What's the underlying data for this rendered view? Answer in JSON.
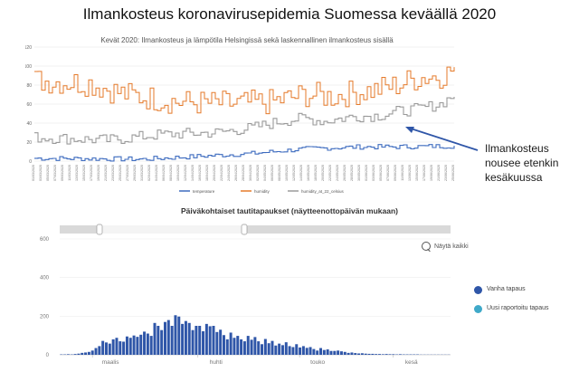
{
  "slide": {
    "title": "Ilmankosteus koronavirusepidemia Suomessa keväällä 2020",
    "annotation": "Ilmankosteus nousee etenkin kesäkuussa",
    "bottom_title": "Päiväkohtaiset tautitapaukset (näytteenottopäivän mukaan)",
    "zoom_label": "Näytä kaikki",
    "colors": {
      "temperature": "#3d6bbf",
      "humidity": "#e57a2a",
      "humidity_abs": "#9a9a9a",
      "old_case": "#2f56a8",
      "new_case": "#3fa9c9",
      "arrow": "#2f56a8"
    }
  },
  "chart_data": [
    {
      "type": "line",
      "title": "Kevät 2020: Ilmankosteus ja lämpötila Helsingissä sekä laskennallinen ilmankosteus sisällä",
      "ylim": [
        0,
        120
      ],
      "yticks": [
        "0",
        "20",
        "40",
        "60",
        "80",
        "100",
        "120"
      ],
      "xtick_labels": [
        "01/03/2020",
        "03/03/2020",
        "05/03/2020",
        "07/03/2020",
        "09/03/2020",
        "11/03/2020",
        "13/03/2020",
        "15/03/2020",
        "17/03/2020",
        "19/03/2020",
        "21/03/2020",
        "23/03/2020",
        "25/03/2020",
        "27/03/2020",
        "29/03/2020",
        "31/03/2020",
        "02/04/2020",
        "04/04/2020",
        "06/04/2020",
        "08/04/2020",
        "10/04/2020",
        "12/04/2020",
        "14/04/2020",
        "16/04/2020",
        "18/04/2020",
        "20/04/2020",
        "22/04/2020",
        "24/04/2020",
        "26/04/2020",
        "28/04/2020",
        "30/04/2020",
        "02/05/2020",
        "04/05/2020",
        "06/05/2020",
        "08/05/2020",
        "10/05/2020",
        "12/05/2020",
        "14/05/2020",
        "16/05/2020",
        "18/05/2020",
        "20/05/2020",
        "22/05/2020",
        "24/05/2020",
        "26/05/2020",
        "28/05/2020",
        "30/05/2020",
        "01/06/2020",
        "03/06/2020",
        "05/06/2020",
        "07/06/2020",
        "09/06/2020",
        "11/06/2020",
        "13/06/2020",
        "15/06/2020",
        "17/06/2020",
        "19/06/2020",
        "21/06/2020",
        "23/06/2020",
        "25/06/2020"
      ],
      "legend": [
        "temperature",
        "humidity",
        "humidity_at_22_celsius"
      ],
      "series": [
        {
          "name": "temperature",
          "keypoints": [
            [
              0,
              3
            ],
            [
              30,
              2
            ],
            [
              40,
              4
            ],
            [
              60,
              8
            ],
            [
              75,
              13
            ],
            [
              90,
              15
            ],
            [
              100,
              15
            ],
            [
              116,
              16
            ]
          ]
        },
        {
          "name": "humidity",
          "keypoints": [
            [
              0,
              85
            ],
            [
              15,
              82
            ],
            [
              25,
              70
            ],
            [
              40,
              62
            ],
            [
              55,
              60
            ],
            [
              65,
              62
            ],
            [
              75,
              70
            ],
            [
              82,
              68
            ],
            [
              88,
              72
            ],
            [
              94,
              75
            ],
            [
              100,
              80
            ],
            [
              106,
              88
            ],
            [
              112,
              90
            ],
            [
              116,
              98
            ]
          ]
        },
        {
          "name": "humidity_at_22_celsius",
          "keypoints": [
            [
              0,
              25
            ],
            [
              20,
              22
            ],
            [
              35,
              28
            ],
            [
              50,
              30
            ],
            [
              60,
              35
            ],
            [
              68,
              42
            ],
            [
              74,
              45
            ],
            [
              80,
              42
            ],
            [
              88,
              47
            ],
            [
              95,
              48
            ],
            [
              100,
              52
            ],
            [
              106,
              55
            ],
            [
              112,
              60
            ],
            [
              116,
              70
            ]
          ]
        }
      ]
    },
    {
      "type": "bar",
      "title": "Päiväkohtaiset tautitapaukset (näytteenottopäivän mukaan)",
      "ylim": [
        0,
        600
      ],
      "yticks": [
        "0",
        "200",
        "400",
        "600"
      ],
      "month_labels": [
        "maalis",
        "huhti",
        "touko",
        "kesä"
      ],
      "series": [
        {
          "name": "Vanha tapaus",
          "values": [
            2,
            2,
            3,
            2,
            4,
            6,
            10,
            12,
            15,
            22,
            35,
            45,
            72,
            64,
            58,
            80,
            88,
            70,
            68,
            95,
            88,
            100,
            93,
            104,
            120,
            110,
            98,
            165,
            150,
            128,
            170,
            180,
            150,
            205,
            198,
            160,
            175,
            165,
            128,
            150,
            150,
            122,
            160,
            148,
            150,
            118,
            130,
            102,
            80,
            115,
            88,
            98,
            80,
            70,
            98,
            78,
            92,
            70,
            55,
            82,
            60,
            72,
            48,
            58,
            50,
            65,
            45,
            40,
            55,
            38,
            45,
            36,
            40,
            30,
            22,
            35,
            25,
            28,
            20,
            20,
            22,
            18,
            15,
            10,
            12,
            9,
            7,
            8,
            6,
            5,
            5,
            4,
            4,
            3,
            4,
            3,
            3,
            2,
            3,
            2,
            2,
            2,
            2,
            2,
            1,
            1,
            1,
            1,
            1,
            1,
            1,
            1,
            1
          ]
        },
        {
          "name": "Uusi raportoitu tapaus",
          "values": []
        }
      ]
    }
  ]
}
